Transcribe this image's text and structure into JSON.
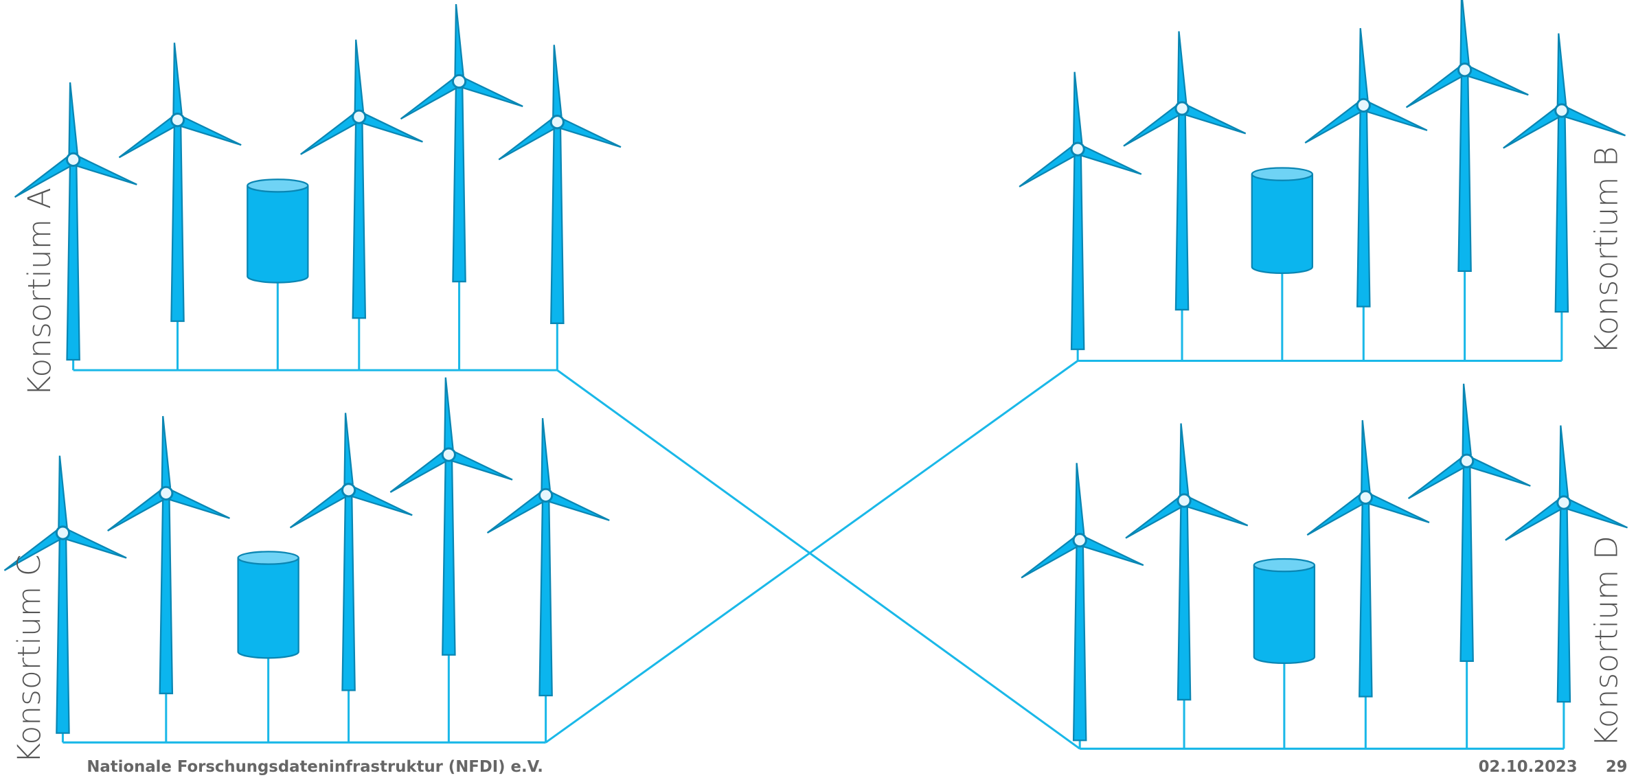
{
  "groups": [
    {
      "label": "Konsortium A"
    },
    {
      "label": "Konsortium B"
    },
    {
      "label": "Konsortium C"
    },
    {
      "label": "Konsortium D"
    }
  ],
  "footer": {
    "organization": "Nationale Forschungsdateninfrastruktur (NFDI) e.V.",
    "date": "02.10.2023",
    "page": "29"
  }
}
